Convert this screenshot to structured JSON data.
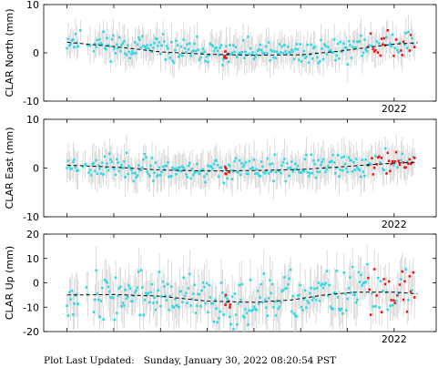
{
  "chart_data": [
    {
      "type": "scatter",
      "ylabel": "CLAR North (mm)",
      "ylim": [
        -10,
        10
      ],
      "yticks": [
        10,
        0,
        -10
      ],
      "xlabel_tick": "2022",
      "trend": [
        [
          2015.0,
          2.2
        ],
        [
          2016.0,
          1.3
        ],
        [
          2017.0,
          0.2
        ],
        [
          2018.0,
          -0.3
        ],
        [
          2019.0,
          -0.5
        ],
        [
          2020.0,
          -0.4
        ],
        [
          2020.8,
          0.3
        ],
        [
          2021.5,
          1.2
        ],
        [
          2022.0,
          1.8
        ],
        [
          2022.5,
          2.1
        ]
      ],
      "seed": 11,
      "base": 1.2,
      "noise": 1.6,
      "err": 3.0,
      "red_frac": 0.55,
      "colors": {
        "series": "#22dde8",
        "recent": "#ee1111",
        "error": "#cccccc",
        "trend": "#000000"
      }
    },
    {
      "type": "scatter",
      "ylabel": "CLAR East (mm)",
      "ylim": [
        -10,
        10
      ],
      "yticks": [
        10,
        0,
        -10
      ],
      "xlabel_tick": "2022",
      "trend": [
        [
          2015.0,
          0.6
        ],
        [
          2016.0,
          0.2
        ],
        [
          2017.0,
          -0.4
        ],
        [
          2018.0,
          -0.6
        ],
        [
          2019.0,
          -0.5
        ],
        [
          2020.0,
          -0.3
        ],
        [
          2020.8,
          0.2
        ],
        [
          2021.5,
          0.7
        ],
        [
          2022.0,
          1.0
        ],
        [
          2022.5,
          1.2
        ]
      ],
      "seed": 23,
      "base": 0.6,
      "noise": 1.5,
      "err": 3.2,
      "red_frac": 0.6,
      "colors": {
        "series": "#22dde8",
        "recent": "#ee1111",
        "error": "#cccccc",
        "trend": "#000000"
      }
    },
    {
      "type": "scatter",
      "ylabel": "CLAR Up (mm)",
      "ylim": [
        -20,
        20
      ],
      "yticks": [
        20,
        10,
        0,
        -10,
        -20
      ],
      "xlabel_tick": "2022",
      "trend": [
        [
          2015.0,
          -5.0
        ],
        [
          2016.0,
          -4.8
        ],
        [
          2017.0,
          -5.5
        ],
        [
          2018.0,
          -7.5
        ],
        [
          2019.0,
          -8.0
        ],
        [
          2019.8,
          -7.0
        ],
        [
          2020.5,
          -5.0
        ],
        [
          2021.2,
          -3.8
        ],
        [
          2022.0,
          -3.8
        ],
        [
          2022.5,
          -4.5
        ]
      ],
      "seed": 37,
      "base": 0.0,
      "noise": 6.0,
      "err": 8.0,
      "red_frac": 0.45,
      "colors": {
        "series": "#22dde8",
        "recent": "#ee1111",
        "error": "#cccccc",
        "trend": "#000000"
      }
    }
  ],
  "footer": {
    "label": "Plot Last Updated:",
    "timestamp": "Sunday, January 30, 2022 08:20:54 PST"
  }
}
